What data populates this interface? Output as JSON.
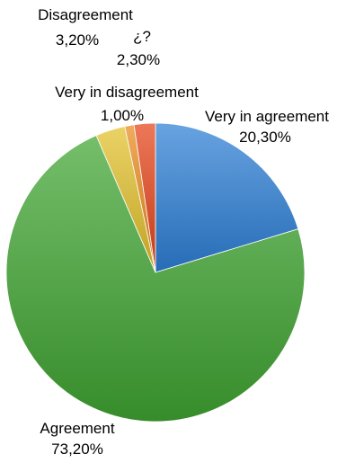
{
  "chart_data": {
    "type": "pie",
    "title": "",
    "slices": [
      {
        "name": "Very in agreement",
        "value": 20.3,
        "label": "20,30%",
        "color": "#2d7fd6"
      },
      {
        "name": "Agreement",
        "value": 73.2,
        "label": "73,20%",
        "color": "#3fa531"
      },
      {
        "name": "Disagreement",
        "value": 3.2,
        "label": "3,20%",
        "color": "#e2c02b"
      },
      {
        "name": "Very in disagreement",
        "value": 1.0,
        "label": "1,00%",
        "color": "#e98a1d"
      },
      {
        "name": "¿?",
        "value": 2.3,
        "label": "2,30%",
        "color": "#e54418"
      }
    ],
    "legend": "none"
  }
}
